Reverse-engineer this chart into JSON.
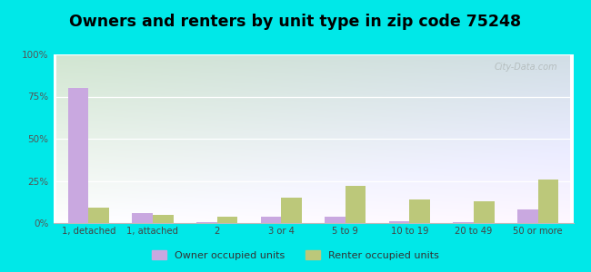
{
  "title": "Owners and renters by unit type in zip code 75248",
  "categories": [
    "1, detached",
    "1, attached",
    "2",
    "3 or 4",
    "5 to 9",
    "10 to 19",
    "20 to 49",
    "50 or more"
  ],
  "owner_values": [
    80,
    6,
    0.5,
    4,
    4,
    1,
    0.5,
    8
  ],
  "renter_values": [
    9,
    5,
    4,
    15,
    22,
    14,
    13,
    26
  ],
  "owner_color": "#c9a8e0",
  "renter_color": "#bcc87a",
  "background_color": "#00e8e8",
  "plot_bg_color_topleft": "#c8dfc8",
  "plot_bg_color_topright": "#c8dce8",
  "plot_bg_color_bottom": "#f8fff8",
  "title_fontsize": 12.5,
  "legend_labels": [
    "Owner occupied units",
    "Renter occupied units"
  ],
  "ylim": [
    0,
    100
  ],
  "yticks": [
    0,
    25,
    50,
    75,
    100
  ],
  "ytick_labels": [
    "0%",
    "25%",
    "50%",
    "75%",
    "100%"
  ],
  "watermark": "City-Data.com",
  "bar_width": 0.32
}
